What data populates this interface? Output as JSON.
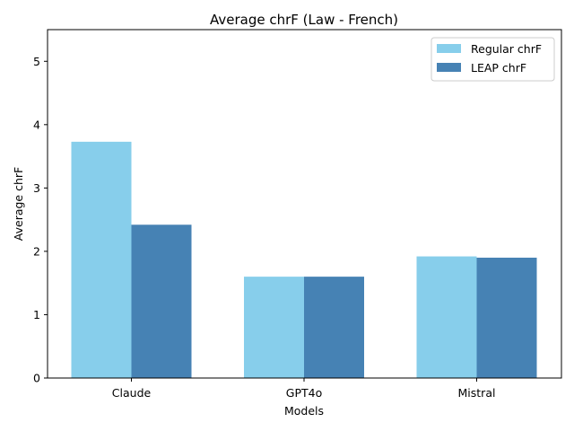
{
  "chart_data": {
    "type": "bar",
    "title": "Average chrF (Law - French)",
    "xlabel": "Models",
    "ylabel": "Average chrF",
    "categories": [
      "Claude",
      "GPT4o",
      "Mistral"
    ],
    "series": [
      {
        "name": "Regular chrF",
        "color": "#87ceeb",
        "values": [
          3.73,
          1.6,
          1.92
        ]
      },
      {
        "name": "LEAP chrF",
        "color": "#4682b4",
        "values": [
          2.42,
          1.6,
          1.9
        ]
      }
    ],
    "ylim": [
      0,
      5.5
    ],
    "yticks": [
      "0",
      "1",
      "2",
      "3",
      "4",
      "5"
    ],
    "grid": false,
    "legend_position": "top-right"
  }
}
